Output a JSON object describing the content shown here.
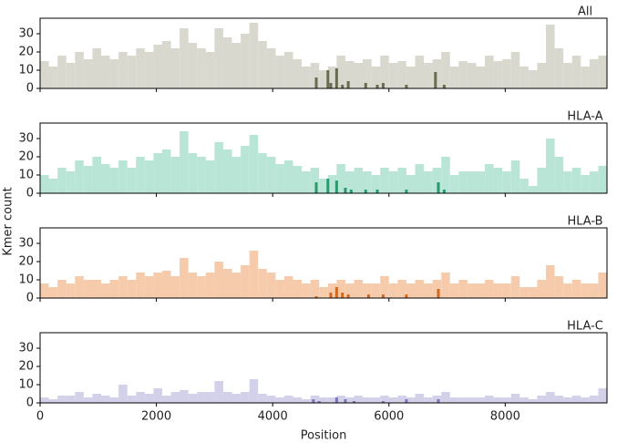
{
  "chart_data": [
    {
      "type": "bar",
      "title": "All",
      "x": [
        0,
        150,
        300,
        450,
        600,
        750,
        900,
        1050,
        1200,
        1350,
        1500,
        1650,
        1800,
        1950,
        2100,
        2250,
        2400,
        2550,
        2700,
        2850,
        3000,
        3150,
        3300,
        3450,
        3600,
        3750,
        3900,
        4050,
        4200,
        4350,
        4500,
        4650,
        4800,
        4950,
        5100,
        5250,
        5400,
        5550,
        5700,
        5850,
        6000,
        6150,
        6300,
        6450,
        6600,
        6750,
        6900,
        7050,
        7200,
        7350,
        7500,
        7650,
        7800,
        7950,
        8100,
        8250,
        8400,
        8550,
        8700,
        8850,
        9000,
        9150,
        9300,
        9450,
        9600
      ],
      "series": [
        {
          "color": "#d8d8cf",
          "values": [
            15,
            12,
            18,
            14,
            20,
            16,
            22,
            18,
            16,
            20,
            18,
            22,
            20,
            24,
            26,
            22,
            33,
            25,
            22,
            20,
            33,
            28,
            25,
            30,
            36,
            26,
            22,
            18,
            20,
            16,
            12,
            14,
            10,
            12,
            18,
            15,
            14,
            16,
            12,
            18,
            14,
            15,
            12,
            18,
            14,
            16,
            20,
            12,
            15,
            14,
            12,
            18,
            15,
            16,
            20,
            12,
            10,
            14,
            35,
            22,
            14,
            18,
            12,
            16,
            18
          ]
        },
        {
          "color": "#6b6b52",
          "x": [
            4750,
            4950,
            5000,
            5100,
            5200,
            5300,
            5600,
            5800,
            5900,
            6300,
            6800,
            6950
          ],
          "values": [
            6,
            10,
            3,
            11,
            2,
            4,
            3,
            2,
            3,
            2,
            9,
            2
          ]
        }
      ],
      "xlim": [
        0,
        9750
      ],
      "ylim": [
        0,
        38.5
      ],
      "yticks": [
        0,
        10,
        20,
        30
      ],
      "xticks": [
        0,
        2000,
        4000,
        6000,
        8000
      ]
    },
    {
      "type": "bar",
      "title": "HLA-A",
      "ylabel": "Kmer count",
      "x": [
        0,
        150,
        300,
        450,
        600,
        750,
        900,
        1050,
        1200,
        1350,
        1500,
        1650,
        1800,
        1950,
        2100,
        2250,
        2400,
        2550,
        2700,
        2850,
        3000,
        3150,
        3300,
        3450,
        3600,
        3750,
        3900,
        4050,
        4200,
        4350,
        4500,
        4650,
        4800,
        4950,
        5100,
        5250,
        5400,
        5550,
        5700,
        5850,
        6000,
        6150,
        6300,
        6450,
        6600,
        6750,
        6900,
        7050,
        7200,
        7350,
        7500,
        7650,
        7800,
        7950,
        8100,
        8250,
        8400,
        8550,
        8700,
        8850,
        9000,
        9150,
        9300,
        9450,
        9600
      ],
      "series": [
        {
          "color": "#b9e5d7",
          "values": [
            10,
            8,
            14,
            12,
            18,
            15,
            20,
            16,
            14,
            18,
            14,
            20,
            18,
            22,
            24,
            20,
            34,
            22,
            20,
            18,
            28,
            24,
            20,
            26,
            32,
            22,
            20,
            16,
            18,
            15,
            12,
            14,
            8,
            10,
            16,
            12,
            14,
            12,
            10,
            14,
            12,
            14,
            10,
            16,
            12,
            14,
            20,
            10,
            12,
            12,
            12,
            16,
            14,
            12,
            18,
            8,
            4,
            14,
            30,
            20,
            12,
            14,
            10,
            12,
            15
          ]
        },
        {
          "color": "#2a9a6e",
          "x": [
            4750,
            4950,
            5100,
            5250,
            5350,
            5600,
            5800,
            6300,
            6850,
            6950
          ],
          "values": [
            6,
            8,
            7,
            3,
            2,
            2,
            2,
            2,
            6,
            2
          ]
        }
      ],
      "xlim": [
        0,
        9750
      ],
      "ylim": [
        0,
        38.5
      ],
      "yticks": [
        0,
        10,
        20,
        30
      ],
      "xticks": [
        0,
        2000,
        4000,
        6000,
        8000
      ]
    },
    {
      "type": "bar",
      "title": "HLA-B",
      "x": [
        0,
        150,
        300,
        450,
        600,
        750,
        900,
        1050,
        1200,
        1350,
        1500,
        1650,
        1800,
        1950,
        2100,
        2250,
        2400,
        2550,
        2700,
        2850,
        3000,
        3150,
        3300,
        3450,
        3600,
        3750,
        3900,
        4050,
        4200,
        4350,
        4500,
        4650,
        4800,
        4950,
        5100,
        5250,
        5400,
        5550,
        5700,
        5850,
        6000,
        6150,
        6300,
        6450,
        6600,
        6750,
        6900,
        7050,
        7200,
        7350,
        7500,
        7650,
        7800,
        7950,
        8100,
        8250,
        8400,
        8550,
        8700,
        8850,
        9000,
        9150,
        9300,
        9450,
        9600
      ],
      "series": [
        {
          "color": "#f6cbab",
          "values": [
            8,
            6,
            10,
            8,
            12,
            10,
            10,
            8,
            10,
            12,
            10,
            14,
            12,
            14,
            15,
            12,
            22,
            14,
            12,
            14,
            20,
            16,
            14,
            18,
            26,
            16,
            14,
            10,
            12,
            10,
            8,
            10,
            6,
            8,
            10,
            8,
            10,
            8,
            8,
            12,
            8,
            10,
            8,
            10,
            8,
            10,
            14,
            8,
            10,
            8,
            8,
            10,
            8,
            8,
            12,
            6,
            6,
            10,
            18,
            12,
            8,
            10,
            8,
            8,
            14
          ]
        },
        {
          "color": "#d2691e",
          "x": [
            4750,
            5000,
            5100,
            5200,
            5300,
            5650,
            5900,
            6300,
            6850
          ],
          "values": [
            1,
            3,
            6,
            3,
            2,
            2,
            2,
            2,
            5
          ]
        }
      ],
      "xlim": [
        0,
        9750
      ],
      "ylim": [
        0,
        38.5
      ],
      "yticks": [
        0,
        10,
        20,
        30
      ],
      "xticks": [
        0,
        2000,
        4000,
        6000,
        8000
      ]
    },
    {
      "type": "bar",
      "title": "HLA-C",
      "xlabel": "Position",
      "x": [
        0,
        150,
        300,
        450,
        600,
        750,
        900,
        1050,
        1200,
        1350,
        1500,
        1650,
        1800,
        1950,
        2100,
        2250,
        2400,
        2550,
        2700,
        2850,
        3000,
        3150,
        3300,
        3450,
        3600,
        3750,
        3900,
        4050,
        4200,
        4350,
        4500,
        4650,
        4800,
        4950,
        5100,
        5250,
        5400,
        5550,
        5700,
        5850,
        6000,
        6150,
        6300,
        6450,
        6600,
        6750,
        6900,
        7050,
        7200,
        7350,
        7500,
        7650,
        7800,
        7950,
        8100,
        8250,
        8400,
        8550,
        8700,
        8850,
        9000,
        9150,
        9300,
        9450,
        9600
      ],
      "series": [
        {
          "color": "#d3d1ea",
          "values": [
            3,
            2,
            4,
            4,
            6,
            3,
            5,
            4,
            3,
            10,
            4,
            6,
            5,
            8,
            4,
            6,
            7,
            5,
            6,
            6,
            12,
            6,
            5,
            6,
            13,
            5,
            4,
            3,
            4,
            3,
            2,
            4,
            3,
            3,
            4,
            3,
            4,
            3,
            3,
            4,
            3,
            4,
            3,
            5,
            3,
            4,
            6,
            3,
            3,
            3,
            3,
            4,
            3,
            3,
            5,
            3,
            2,
            4,
            6,
            4,
            3,
            4,
            3,
            4,
            8
          ]
        },
        {
          "color": "#7a75b5",
          "x": [
            4700,
            4800,
            5100,
            5250,
            5400,
            5900,
            6300,
            6850
          ],
          "values": [
            2,
            1,
            3,
            2,
            1,
            1,
            2,
            2
          ]
        }
      ],
      "xlim": [
        0,
        9750
      ],
      "ylim": [
        0,
        38.5
      ],
      "yticks": [
        0,
        10,
        20,
        30
      ],
      "xticks": [
        0,
        2000,
        4000,
        6000,
        8000
      ]
    }
  ]
}
